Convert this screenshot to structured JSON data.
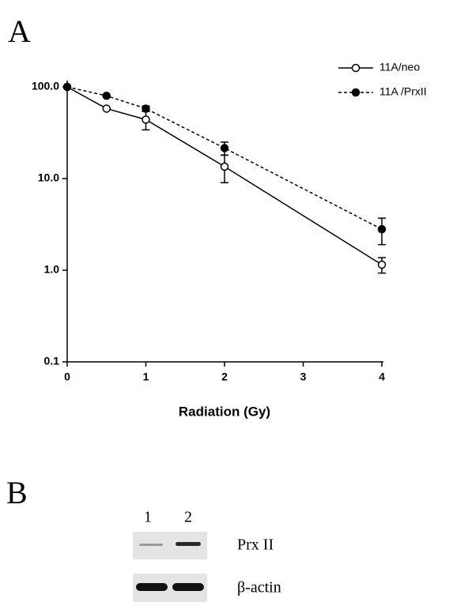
{
  "panel_labels": [
    "A",
    "B"
  ],
  "chart_data": {
    "type": "line",
    "x_label": "Radiation (Gy)",
    "x": [
      0,
      0.5,
      1,
      2,
      4
    ],
    "series": [
      {
        "name": "11A/neo",
        "color": "#000000",
        "line_style": "solid",
        "marker_fill": "open",
        "values": [
          100,
          58,
          44,
          13.5,
          1.15
        ],
        "errors": [
          null,
          null,
          10,
          4.5,
          0.22
        ]
      },
      {
        "name": "11A /PrxII",
        "color": "#000000",
        "line_style": "dashed",
        "marker_fill": "filled",
        "values": [
          100,
          80,
          58,
          21.5,
          2.8
        ],
        "errors": [
          null,
          null,
          4,
          3.5,
          0.9
        ]
      }
    ],
    "xlim": [
      0,
      4
    ],
    "xticks": [
      0,
      1,
      2,
      3,
      4
    ],
    "ylim": [
      0.1,
      100
    ],
    "log_y": true,
    "yticks": [
      {
        "value": 100,
        "label": "100.0"
      },
      {
        "value": 10,
        "label": "10.0"
      },
      {
        "value": 1,
        "label": "1.0"
      },
      {
        "value": 0.1,
        "label": "0.1"
      }
    ],
    "grid": false,
    "legend": "upper right"
  },
  "blot": {
    "lanes": [
      "1",
      "2"
    ],
    "rows": [
      "Prx II",
      "β-actin"
    ]
  }
}
